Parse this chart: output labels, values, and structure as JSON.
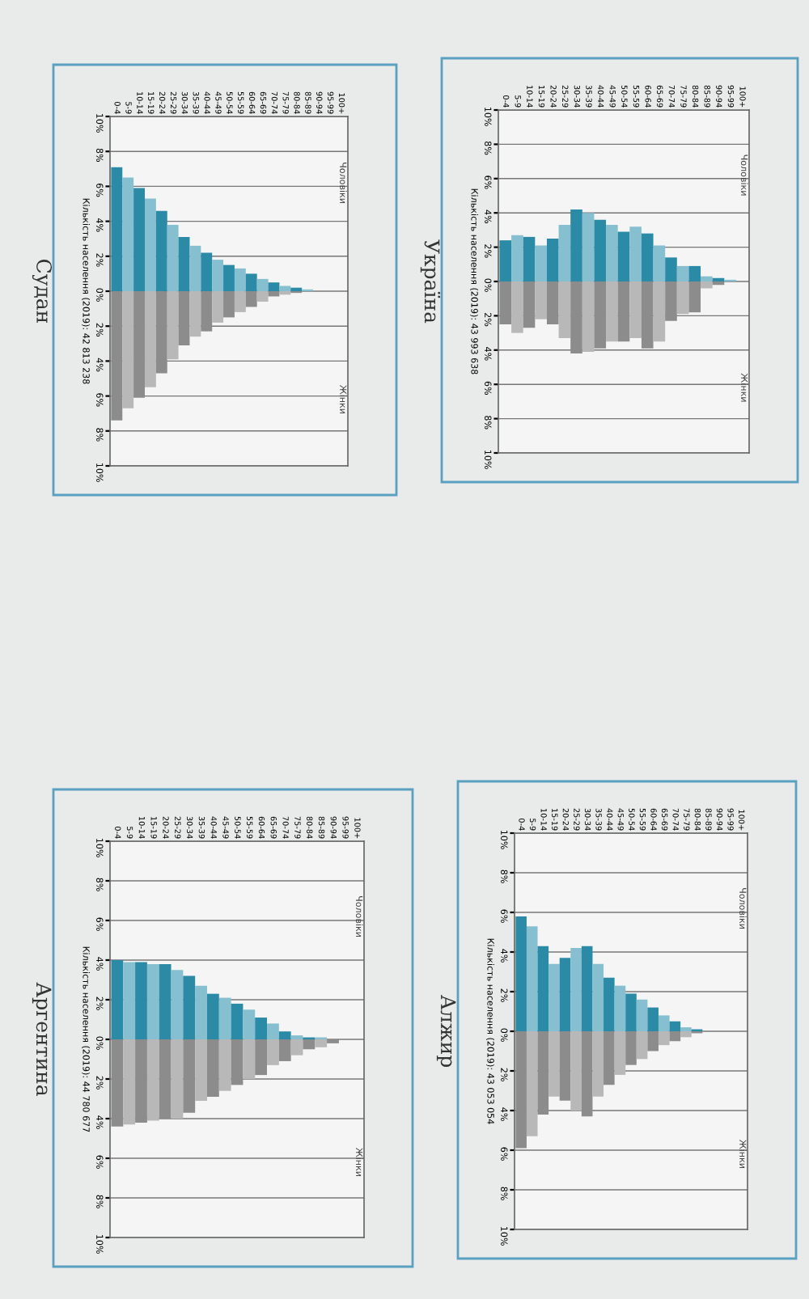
{
  "chart_data": [
    {
      "type": "bar",
      "stacked": true,
      "title": "Україна",
      "ylabel": "Кількість населення (2019): 43 993 638",
      "categories": [
        "0-4",
        "5-9",
        "10-14",
        "15-19",
        "20-24",
        "25-29",
        "30-34",
        "35-39",
        "40-44",
        "45-49",
        "50-54",
        "55-59",
        "60-64",
        "65-69",
        "70-74",
        "75-79",
        "80-84",
        "85-89",
        "90-94",
        "95-99",
        "100+"
      ],
      "ylim": [
        -10,
        10
      ],
      "yticks": [
        {
          "value": -10,
          "label": "10%"
        },
        {
          "value": -8,
          "label": "8%"
        },
        {
          "value": -6,
          "label": "6%"
        },
        {
          "value": -4,
          "label": "4%"
        },
        {
          "value": -2,
          "label": "2%"
        },
        {
          "value": 0,
          "label": "0%"
        },
        {
          "value": 2,
          "label": "2%"
        },
        {
          "value": 4,
          "label": "4%"
        },
        {
          "value": 6,
          "label": "6%"
        },
        {
          "value": 8,
          "label": "8%"
        },
        {
          "value": 10,
          "label": "10%"
        }
      ],
      "grid": "y",
      "legend": false,
      "series": [
        {
          "name": "Чоловіки",
          "colors": [
            "#2b8aa6",
            "#86bfcf",
            "#2b8aa6",
            "#86bfcf",
            "#2b8aa6",
            "#86bfcf",
            "#2b8aa6",
            "#86bfcf",
            "#2b8aa6",
            "#86bfcf",
            "#2b8aa6",
            "#86bfcf",
            "#2b8aa6",
            "#86bfcf",
            "#2b8aa6",
            "#86bfcf",
            "#2b8aa6",
            "#86bfcf",
            "#2b8aa6",
            "#86bfcf",
            "#2b8aa6"
          ],
          "values": [
            2.4,
            2.7,
            2.6,
            2.1,
            2.5,
            3.3,
            4.2,
            4.0,
            3.6,
            3.3,
            2.9,
            3.2,
            2.8,
            2.1,
            1.4,
            0.9,
            0.9,
            0.3,
            0.2,
            0.1,
            0
          ]
        },
        {
          "name": "Жінки",
          "colors": [
            "#8c8c8c",
            "#b8b8b8",
            "#8c8c8c",
            "#b8b8b8",
            "#8c8c8c",
            "#b8b8b8",
            "#8c8c8c",
            "#b8b8b8",
            "#8c8c8c",
            "#b8b8b8",
            "#8c8c8c",
            "#b8b8b8",
            "#8c8c8c",
            "#b8b8b8",
            "#8c8c8c",
            "#b8b8b8",
            "#8c8c8c",
            "#b8b8b8",
            "#8c8c8c",
            "#b8b8b8",
            "#8c8c8c"
          ],
          "values": [
            -2.5,
            -3.0,
            -2.7,
            -2.2,
            -2.5,
            -3.3,
            -4.2,
            -4.1,
            -3.9,
            -3.5,
            -3.5,
            -3.3,
            -3.9,
            -3.5,
            -2.3,
            -1.9,
            -1.8,
            -0.4,
            -0.2,
            0,
            0
          ]
        }
      ]
    },
    {
      "type": "bar",
      "stacked": true,
      "title": "Судан",
      "ylabel": "Кількість населення (2019): 42 813 238",
      "categories": [
        "0-4",
        "5-9",
        "10-14",
        "15-19",
        "20-24",
        "25-29",
        "30-34",
        "35-39",
        "40-44",
        "45-49",
        "50-54",
        "55-59",
        "60-64",
        "65-69",
        "70-74",
        "75-79",
        "80-84",
        "85-89",
        "90-94",
        "95-99",
        "100+"
      ],
      "ylim": [
        -10,
        10
      ],
      "yticks": [
        {
          "value": -10,
          "label": "10%"
        },
        {
          "value": -8,
          "label": "8%"
        },
        {
          "value": -6,
          "label": "6%"
        },
        {
          "value": -4,
          "label": "4%"
        },
        {
          "value": -2,
          "label": "2%"
        },
        {
          "value": 0,
          "label": "0%"
        },
        {
          "value": 2,
          "label": "2%"
        },
        {
          "value": 4,
          "label": "4%"
        },
        {
          "value": 6,
          "label": "6%"
        },
        {
          "value": 8,
          "label": "8%"
        },
        {
          "value": 10,
          "label": "10%"
        }
      ],
      "grid": "y",
      "legend": false,
      "series": [
        {
          "name": "Чоловіки",
          "colors": [
            "#2b8aa6",
            "#86bfcf",
            "#2b8aa6",
            "#86bfcf",
            "#2b8aa6",
            "#86bfcf",
            "#2b8aa6",
            "#86bfcf",
            "#2b8aa6",
            "#86bfcf",
            "#2b8aa6",
            "#86bfcf",
            "#2b8aa6",
            "#86bfcf",
            "#2b8aa6",
            "#86bfcf",
            "#2b8aa6",
            "#86bfcf",
            "#2b8aa6",
            "#86bfcf",
            "#2b8aa6"
          ],
          "values": [
            7.1,
            6.5,
            5.9,
            5.3,
            4.6,
            3.8,
            3.1,
            2.6,
            2.2,
            1.8,
            1.5,
            1.3,
            1.0,
            0.7,
            0.5,
            0.3,
            0.2,
            0.1,
            0,
            0,
            0
          ]
        },
        {
          "name": "Жінки",
          "colors": [
            "#8c8c8c",
            "#b8b8b8",
            "#8c8c8c",
            "#b8b8b8",
            "#8c8c8c",
            "#b8b8b8",
            "#8c8c8c",
            "#b8b8b8",
            "#8c8c8c",
            "#b8b8b8",
            "#8c8c8c",
            "#b8b8b8",
            "#8c8c8c",
            "#b8b8b8",
            "#8c8c8c",
            "#b8b8b8",
            "#8c8c8c",
            "#b8b8b8",
            "#8c8c8c",
            "#b8b8b8",
            "#8c8c8c"
          ],
          "values": [
            -7.4,
            -6.7,
            -6.1,
            -5.5,
            -4.7,
            -3.9,
            -3.1,
            -2.6,
            -2.3,
            -1.8,
            -1.5,
            -1.2,
            -0.9,
            -0.6,
            -0.3,
            -0.2,
            -0.1,
            0,
            0,
            0,
            0
          ]
        }
      ]
    },
    {
      "type": "bar",
      "stacked": true,
      "title": "Алжир",
      "ylabel": "Кількість населення (2019): 43 053 054",
      "categories": [
        "0-4",
        "5-9",
        "10-14",
        "15-19",
        "20-24",
        "25-29",
        "30-34",
        "35-39",
        "40-44",
        "45-49",
        "50-54",
        "55-59",
        "60-64",
        "65-69",
        "70-74",
        "75-79",
        "80-84",
        "85-89",
        "90-94",
        "95-99",
        "100+"
      ],
      "ylim": [
        -10,
        10
      ],
      "yticks": [
        {
          "value": -10,
          "label": "10%"
        },
        {
          "value": -8,
          "label": "8%"
        },
        {
          "value": -6,
          "label": "6%"
        },
        {
          "value": -4,
          "label": "4%"
        },
        {
          "value": -2,
          "label": "2%"
        },
        {
          "value": 0,
          "label": "0%"
        },
        {
          "value": 2,
          "label": "2%"
        },
        {
          "value": 4,
          "label": "4%"
        },
        {
          "value": 6,
          "label": "6%"
        },
        {
          "value": 8,
          "label": "8%"
        },
        {
          "value": 10,
          "label": "10%"
        }
      ],
      "grid": "y",
      "legend": false,
      "series": [
        {
          "name": "Чоловіки",
          "colors": [
            "#2b8aa6",
            "#86bfcf",
            "#2b8aa6",
            "#86bfcf",
            "#2b8aa6",
            "#86bfcf",
            "#2b8aa6",
            "#86bfcf",
            "#2b8aa6",
            "#86bfcf",
            "#2b8aa6",
            "#86bfcf",
            "#2b8aa6",
            "#86bfcf",
            "#2b8aa6",
            "#86bfcf",
            "#2b8aa6",
            "#86bfcf",
            "#2b8aa6",
            "#86bfcf",
            "#2b8aa6"
          ],
          "values": [
            5.8,
            5.3,
            4.3,
            3.4,
            3.7,
            4.2,
            4.3,
            3.4,
            2.7,
            2.3,
            1.9,
            1.6,
            1.2,
            0.8,
            0.5,
            0.2,
            0.1,
            0,
            0,
            0,
            0
          ]
        },
        {
          "name": "Жінки",
          "colors": [
            "#8c8c8c",
            "#b8b8b8",
            "#8c8c8c",
            "#b8b8b8",
            "#8c8c8c",
            "#b8b8b8",
            "#8c8c8c",
            "#b8b8b8",
            "#8c8c8c",
            "#b8b8b8",
            "#8c8c8c",
            "#b8b8b8",
            "#8c8c8c",
            "#b8b8b8",
            "#8c8c8c",
            "#b8b8b8",
            "#8c8c8c",
            "#b8b8b8",
            "#8c8c8c",
            "#b8b8b8",
            "#8c8c8c"
          ],
          "values": [
            -5.9,
            -5.3,
            -4.2,
            -3.3,
            -3.5,
            -4.0,
            -4.3,
            -3.3,
            -2.7,
            -2.2,
            -1.7,
            -1.4,
            -1.0,
            -0.7,
            -0.5,
            -0.3,
            -0.1,
            0,
            0,
            0,
            0
          ]
        }
      ]
    },
    {
      "type": "bar",
      "stacked": true,
      "title": "Аргентина",
      "ylabel": "Кількість населення (2019): 44 780 677",
      "categories": [
        "0-4",
        "5-9",
        "10-14",
        "15-19",
        "20-24",
        "25-29",
        "30-34",
        "35-39",
        "40-44",
        "45-49",
        "50-54",
        "55-59",
        "60-64",
        "65-69",
        "70-74",
        "75-79",
        "80-84",
        "85-89",
        "90-94",
        "95-99",
        "100+"
      ],
      "ylim": [
        -10,
        10
      ],
      "yticks": [
        {
          "value": -10,
          "label": "10%"
        },
        {
          "value": -8,
          "label": "8%"
        },
        {
          "value": -6,
          "label": "6%"
        },
        {
          "value": -4,
          "label": "4%"
        },
        {
          "value": -2,
          "label": "2%"
        },
        {
          "value": 0,
          "label": "0%"
        },
        {
          "value": 2,
          "label": "2%"
        },
        {
          "value": 4,
          "label": "4%"
        },
        {
          "value": 6,
          "label": "6%"
        },
        {
          "value": 8,
          "label": "8%"
        },
        {
          "value": 10,
          "label": "10%"
        }
      ],
      "grid": "y",
      "legend": false,
      "series": [
        {
          "name": "Чоловіки",
          "colors": [
            "#2b8aa6",
            "#86bfcf",
            "#2b8aa6",
            "#86bfcf",
            "#2b8aa6",
            "#86bfcf",
            "#2b8aa6",
            "#86bfcf",
            "#2b8aa6",
            "#86bfcf",
            "#2b8aa6",
            "#86bfcf",
            "#2b8aa6",
            "#86bfcf",
            "#2b8aa6",
            "#86bfcf",
            "#2b8aa6",
            "#86bfcf",
            "#2b8aa6",
            "#86bfcf",
            "#2b8aa6"
          ],
          "values": [
            4.0,
            3.9,
            3.9,
            3.8,
            3.8,
            3.5,
            3.2,
            2.7,
            2.3,
            2.1,
            1.8,
            1.5,
            1.1,
            0.8,
            0.4,
            0.2,
            0.1,
            0.1,
            0,
            0,
            0
          ]
        },
        {
          "name": "Жінки",
          "colors": [
            "#8c8c8c",
            "#b8b8b8",
            "#8c8c8c",
            "#b8b8b8",
            "#8c8c8c",
            "#b8b8b8",
            "#8c8c8c",
            "#b8b8b8",
            "#8c8c8c",
            "#b8b8b8",
            "#8c8c8c",
            "#b8b8b8",
            "#8c8c8c",
            "#b8b8b8",
            "#8c8c8c",
            "#b8b8b8",
            "#8c8c8c",
            "#b8b8b8",
            "#8c8c8c",
            "#b8b8b8",
            "#8c8c8c"
          ],
          "values": [
            -4.4,
            -4.3,
            -4.2,
            -4.1,
            -4.0,
            -4.0,
            -3.7,
            -3.1,
            -2.9,
            -2.6,
            -2.3,
            -2.0,
            -1.8,
            -1.3,
            -1.1,
            -0.8,
            -0.5,
            -0.4,
            -0.2,
            0,
            0
          ]
        }
      ]
    }
  ]
}
